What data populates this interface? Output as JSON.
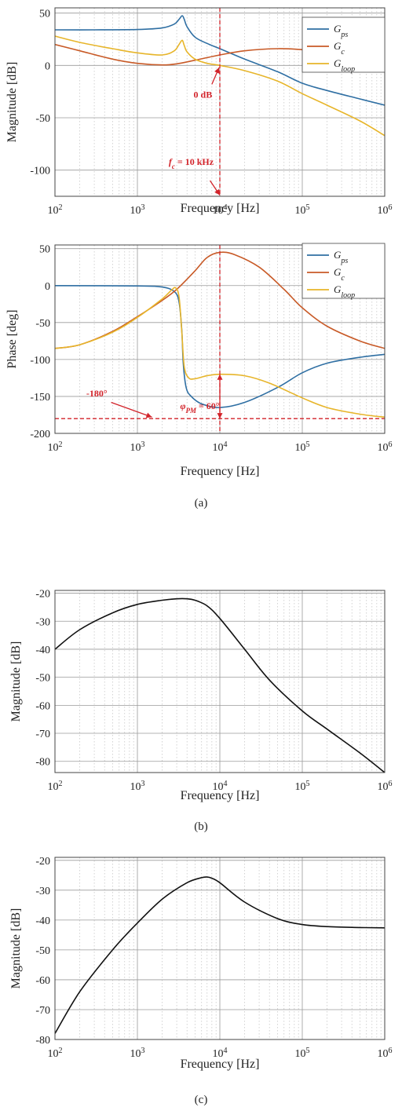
{
  "colors": {
    "blue": "#2f6fa3",
    "orange": "#c85a27",
    "yellow": "#e7b52a",
    "red": "#d2232a",
    "black": "#111111",
    "grid_major": "#9a9a9a",
    "grid_minor": "#c8c8c8"
  },
  "chart_data": [
    {
      "id": "a-mag",
      "type": "line",
      "xscale": "log",
      "xlim": [
        100,
        1000000
      ],
      "ylim": [
        -125,
        55
      ],
      "xlabel": "Frequency [Hz]",
      "ylabel": "Magnitude [dB]",
      "x_ticks": [
        {
          "value": 100,
          "base": "10",
          "exp": "2"
        },
        {
          "value": 1000,
          "base": "10",
          "exp": "3"
        },
        {
          "value": 10000,
          "base": "10",
          "exp": "4"
        },
        {
          "value": 100000,
          "base": "10",
          "exp": "5"
        },
        {
          "value": 1000000,
          "base": "10",
          "exp": "6"
        }
      ],
      "y_ticks": [
        {
          "value": 50,
          "label": "50"
        },
        {
          "value": 0,
          "label": "0"
        },
        {
          "value": -50,
          "label": "-50"
        },
        {
          "value": -100,
          "label": "-100"
        }
      ],
      "grid": true,
      "legend": "top-right",
      "series": [
        {
          "key": "gps",
          "color": "blue",
          "legend_base": "G",
          "legend_sub": "ps",
          "points": [
            [
              100,
              34
            ],
            [
              300,
              34
            ],
            [
              1000,
              34.3
            ],
            [
              2000,
              35.8
            ],
            [
              2800,
              39.5
            ],
            [
              3200,
              44
            ],
            [
              3500,
              47.5
            ],
            [
              3700,
              44
            ],
            [
              4000,
              37
            ],
            [
              5000,
              27
            ],
            [
              7000,
              21
            ],
            [
              10000,
              16
            ],
            [
              20000,
              6
            ],
            [
              50000,
              -6
            ],
            [
              100000,
              -17
            ],
            [
              200000,
              -24
            ],
            [
              500000,
              -32
            ],
            [
              1000000,
              -38
            ]
          ]
        },
        {
          "key": "gc",
          "color": "orange",
          "legend_base": "G",
          "legend_sub": "c",
          "points": [
            [
              100,
              20
            ],
            [
              200,
              14
            ],
            [
              500,
              6
            ],
            [
              1000,
              2
            ],
            [
              2000,
              0.5
            ],
            [
              3000,
              1.5
            ],
            [
              5000,
              5
            ],
            [
              10000,
              10
            ],
            [
              20000,
              14
            ],
            [
              50000,
              16
            ],
            [
              100000,
              15
            ],
            [
              200000,
              12
            ],
            [
              500000,
              5
            ],
            [
              1000000,
              -3
            ]
          ]
        },
        {
          "key": "gloop",
          "color": "yellow",
          "legend_base": "G",
          "legend_sub": "loop",
          "points": [
            [
              100,
              28
            ],
            [
              200,
              22
            ],
            [
              500,
              16
            ],
            [
              1000,
              12
            ],
            [
              2000,
              10
            ],
            [
              2800,
              14
            ],
            [
              3200,
              20
            ],
            [
              3500,
              24
            ],
            [
              3700,
              19
            ],
            [
              4000,
              13
            ],
            [
              5000,
              6
            ],
            [
              7000,
              2
            ],
            [
              10000,
              0
            ],
            [
              20000,
              -5
            ],
            [
              50000,
              -15
            ],
            [
              100000,
              -27
            ],
            [
              200000,
              -38
            ],
            [
              500000,
              -53
            ],
            [
              1000000,
              -67
            ]
          ]
        }
      ],
      "markers": [
        {
          "kind": "vline",
          "x": 10000,
          "color": "red"
        },
        {
          "kind": "arrow",
          "from": [
            7600,
            -110
          ],
          "to": [
            10000,
            -124
          ],
          "color": "red"
        },
        {
          "kind": "arrow",
          "from": [
            8000,
            -18
          ],
          "to": [
            9800,
            -2
          ],
          "color": "red"
        }
      ],
      "annotations": [
        {
          "x": 4800,
          "y": -31,
          "text": "0 dB",
          "color": "red",
          "style": "bold"
        },
        {
          "x": 2400,
          "y": -95,
          "base": "f",
          "sub": "c",
          "rest": " = 10 kHz",
          "color": "red",
          "style": "italic"
        }
      ]
    },
    {
      "id": "a-phase",
      "type": "line",
      "xscale": "log",
      "xlim": [
        100,
        1000000
      ],
      "ylim": [
        -200,
        55
      ],
      "xlabel": "Frequency [Hz]",
      "ylabel": "Phase [deg]",
      "x_ticks": [
        {
          "value": 100,
          "base": "10",
          "exp": "2"
        },
        {
          "value": 1000,
          "base": "10",
          "exp": "3"
        },
        {
          "value": 10000,
          "base": "10",
          "exp": "4"
        },
        {
          "value": 100000,
          "base": "10",
          "exp": "5"
        },
        {
          "value": 1000000,
          "base": "10",
          "exp": "6"
        }
      ],
      "y_ticks": [
        {
          "value": 50,
          "label": "50"
        },
        {
          "value": 0,
          "label": "0"
        },
        {
          "value": -50,
          "label": "-50"
        },
        {
          "value": -100,
          "label": "-100"
        },
        {
          "value": -150,
          "label": "-150"
        },
        {
          "value": -200,
          "label": "-200"
        }
      ],
      "grid": true,
      "legend": "top-right",
      "series": [
        {
          "key": "gps",
          "color": "blue",
          "legend_base": "G",
          "legend_sub": "ps",
          "points": [
            [
              100,
              0
            ],
            [
              1000,
              -0.5
            ],
            [
              2000,
              -2
            ],
            [
              2800,
              -8
            ],
            [
              3200,
              -22
            ],
            [
              3450,
              -60
            ],
            [
              3600,
              -105
            ],
            [
              3900,
              -138
            ],
            [
              4500,
              -150
            ],
            [
              6000,
              -160
            ],
            [
              10000,
              -165
            ],
            [
              20000,
              -158
            ],
            [
              50000,
              -138
            ],
            [
              100000,
              -118
            ],
            [
              200000,
              -105
            ],
            [
              500000,
              -97
            ],
            [
              1000000,
              -93
            ]
          ]
        },
        {
          "key": "gc",
          "color": "orange",
          "legend_base": "G",
          "legend_sub": "c",
          "points": [
            [
              100,
              -85
            ],
            [
              200,
              -80
            ],
            [
              500,
              -62
            ],
            [
              1000,
              -42
            ],
            [
              2000,
              -20
            ],
            [
              3000,
              -5
            ],
            [
              5000,
              20
            ],
            [
              7000,
              38
            ],
            [
              10000,
              45
            ],
            [
              15000,
              42
            ],
            [
              30000,
              25
            ],
            [
              60000,
              -5
            ],
            [
              100000,
              -30
            ],
            [
              200000,
              -55
            ],
            [
              500000,
              -75
            ],
            [
              1000000,
              -85
            ]
          ]
        },
        {
          "key": "gloop",
          "color": "yellow",
          "legend_base": "G",
          "legend_sub": "loop",
          "points": [
            [
              100,
              -85
            ],
            [
              200,
              -80
            ],
            [
              500,
              -63
            ],
            [
              1000,
              -43
            ],
            [
              2000,
              -18
            ],
            [
              2600,
              -6
            ],
            [
              2900,
              -3
            ],
            [
              3200,
              -15
            ],
            [
              3450,
              -62
            ],
            [
              3700,
              -110
            ],
            [
              4200,
              -125
            ],
            [
              5000,
              -126
            ],
            [
              7000,
              -122
            ],
            [
              10000,
              -120
            ],
            [
              20000,
              -122
            ],
            [
              40000,
              -132
            ],
            [
              100000,
              -152
            ],
            [
              200000,
              -165
            ],
            [
              500000,
              -174
            ],
            [
              1000000,
              -178
            ]
          ]
        }
      ],
      "markers": [
        {
          "kind": "hline",
          "y": -180,
          "color": "red"
        },
        {
          "kind": "vline",
          "x": 10000,
          "color": "red"
        },
        {
          "kind": "double_arrow",
          "x": 10000,
          "y1": -180,
          "y2": -120,
          "color": "red"
        },
        {
          "kind": "arrow",
          "from": [
            480,
            -158
          ],
          "to": [
            1500,
            -178
          ],
          "color": "red"
        }
      ],
      "annotations": [
        {
          "x": 240,
          "y": -150,
          "text": "-180°",
          "color": "red",
          "style": "bold"
        },
        {
          "x": 3300,
          "y": -167,
          "base": "φ",
          "sub": "PM",
          "rest": " = 60°",
          "color": "red",
          "style": "italic"
        }
      ]
    },
    {
      "id": "b",
      "type": "line",
      "xscale": "log",
      "xlim": [
        100,
        1000000
      ],
      "ylim": [
        -84,
        -19
      ],
      "xlabel": "Frequency [Hz]",
      "ylabel": "Magnitude [dB]",
      "x_ticks": [
        {
          "value": 100,
          "base": "10",
          "exp": "2"
        },
        {
          "value": 1000,
          "base": "10",
          "exp": "3"
        },
        {
          "value": 10000,
          "base": "10",
          "exp": "4"
        },
        {
          "value": 100000,
          "base": "10",
          "exp": "5"
        },
        {
          "value": 1000000,
          "base": "10",
          "exp": "6"
        }
      ],
      "y_ticks": [
        {
          "value": -20,
          "label": "-20"
        },
        {
          "value": -30,
          "label": "-30"
        },
        {
          "value": -40,
          "label": "-40"
        },
        {
          "value": -50,
          "label": "-50"
        },
        {
          "value": -60,
          "label": "-60"
        },
        {
          "value": -70,
          "label": "-70"
        },
        {
          "value": -80,
          "label": "-80"
        }
      ],
      "grid": true,
      "series": [
        {
          "key": "b",
          "color": "black",
          "points": [
            [
              100,
              -40
            ],
            [
              200,
              -33
            ],
            [
              500,
              -27
            ],
            [
              1000,
              -24
            ],
            [
              2000,
              -22.5
            ],
            [
              3000,
              -22
            ],
            [
              4000,
              -22
            ],
            [
              5000,
              -22.5
            ],
            [
              7000,
              -24.5
            ],
            [
              10000,
              -29
            ],
            [
              20000,
              -40
            ],
            [
              40000,
              -51
            ],
            [
              100000,
              -62
            ],
            [
              200000,
              -68.5
            ],
            [
              500000,
              -77
            ],
            [
              1000000,
              -84
            ]
          ]
        }
      ]
    },
    {
      "id": "c",
      "type": "line",
      "xscale": "log",
      "xlim": [
        100,
        1000000
      ],
      "ylim": [
        -80,
        -19
      ],
      "xlabel": "Frequency [Hz]",
      "ylabel": "Magnitude [dB]",
      "x_ticks": [
        {
          "value": 100,
          "base": "10",
          "exp": "2"
        },
        {
          "value": 1000,
          "base": "10",
          "exp": "3"
        },
        {
          "value": 10000,
          "base": "10",
          "exp": "4"
        },
        {
          "value": 100000,
          "base": "10",
          "exp": "5"
        },
        {
          "value": 1000000,
          "base": "10",
          "exp": "6"
        }
      ],
      "y_ticks": [
        {
          "value": -20,
          "label": "-20"
        },
        {
          "value": -30,
          "label": "-30"
        },
        {
          "value": -40,
          "label": "-40"
        },
        {
          "value": -50,
          "label": "-50"
        },
        {
          "value": -60,
          "label": "-60"
        },
        {
          "value": -70,
          "label": "-70"
        },
        {
          "value": -80,
          "label": "-80"
        }
      ],
      "grid": true,
      "series": [
        {
          "key": "c",
          "color": "black",
          "points": [
            [
              100,
              -78
            ],
            [
              200,
              -64
            ],
            [
              500,
              -50
            ],
            [
              1000,
              -41
            ],
            [
              2000,
              -33
            ],
            [
              4000,
              -27.5
            ],
            [
              6000,
              -25.8
            ],
            [
              7000,
              -25.6
            ],
            [
              8000,
              -26
            ],
            [
              10000,
              -27.5
            ],
            [
              20000,
              -34
            ],
            [
              50000,
              -39.5
            ],
            [
              100000,
              -41.5
            ],
            [
              200000,
              -42.2
            ],
            [
              500000,
              -42.5
            ],
            [
              1000000,
              -42.6
            ]
          ]
        }
      ]
    }
  ],
  "captions": [
    "(a)",
    "(b)",
    "(c)"
  ]
}
